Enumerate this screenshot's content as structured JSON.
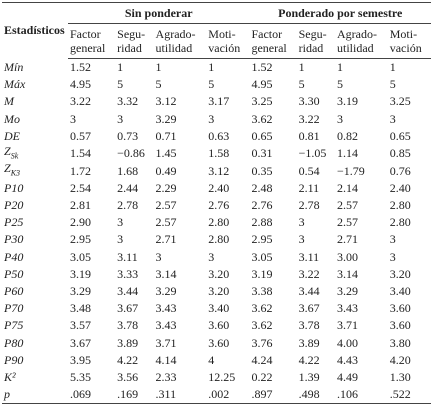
{
  "table": {
    "corner": "Estadísticos",
    "groups": [
      "Sin ponderar",
      "Ponderado por semestre"
    ],
    "columns": [
      [
        "Factor",
        "general"
      ],
      [
        "Segu-",
        "ridad"
      ],
      [
        "Agrado-",
        "utilidad"
      ],
      [
        "Moti-",
        "vación"
      ],
      [
        "Factor",
        "general"
      ],
      [
        "Segu-",
        "ridad"
      ],
      [
        "Agrado-",
        "utilidad"
      ],
      [
        "Moti-",
        "vación"
      ]
    ],
    "rows": [
      {
        "label": "Mín",
        "cells": [
          "1.52",
          "1",
          "1",
          "1",
          "1.52",
          "1",
          "1",
          "1"
        ]
      },
      {
        "label": "Máx",
        "cells": [
          "4.95",
          "5",
          "5",
          "5",
          "4.95",
          "5",
          "5",
          "5"
        ]
      },
      {
        "label": "M",
        "cells": [
          "3.22",
          "3.32",
          "3.12",
          "3.17",
          "3.25",
          "3.30",
          "3.19",
          "3.25"
        ]
      },
      {
        "label": "Mo",
        "cells": [
          "3",
          "3",
          "3.29",
          "3",
          "3.62",
          "3.22",
          "3",
          "3"
        ]
      },
      {
        "label": "DE",
        "cells": [
          "0.57",
          "0.73",
          "0.71",
          "0.63",
          "0.65",
          "0.81",
          "0.82",
          "0.65"
        ]
      },
      {
        "label": "Z",
        "sub": "Sk",
        "cells": [
          "1.54",
          "−0.86",
          "1.45",
          "1.58",
          "0.31",
          "−1.05",
          "1.14",
          "0.85"
        ]
      },
      {
        "label": "Z",
        "sub": "K3",
        "cells": [
          "1.72",
          "1.68",
          "0.49",
          "3.12",
          "0.35",
          "0.54",
          "−1.79",
          "0.76"
        ]
      },
      {
        "label": "P10",
        "cells": [
          "2.54",
          "2.44",
          "2.29",
          "2.40",
          "2.48",
          "2.11",
          "2.14",
          "2.40"
        ]
      },
      {
        "label": "P20",
        "cells": [
          "2.81",
          "2.78",
          "2.57",
          "2.76",
          "2.76",
          "2.78",
          "2.57",
          "2.80"
        ]
      },
      {
        "label": "P25",
        "cells": [
          "2.90",
          "3",
          "2.57",
          "2.80",
          "2.88",
          "3",
          "2.57",
          "2.80"
        ]
      },
      {
        "label": "P30",
        "cells": [
          "2.95",
          "3",
          "2.71",
          "2.80",
          "2.95",
          "3",
          "2.71",
          "3"
        ]
      },
      {
        "label": "P40",
        "cells": [
          "3.05",
          "3.11",
          "3",
          "3",
          "3.05",
          "3.11",
          "3.00",
          "3"
        ]
      },
      {
        "label": "P50",
        "cells": [
          "3.19",
          "3.33",
          "3.14",
          "3.20",
          "3.19",
          "3.22",
          "3.14",
          "3.20"
        ]
      },
      {
        "label": "P60",
        "cells": [
          "3.29",
          "3.44",
          "3.29",
          "3.20",
          "3.38",
          "3.44",
          "3.29",
          "3.40"
        ]
      },
      {
        "label": "P70",
        "cells": [
          "3.48",
          "3.67",
          "3.43",
          "3.40",
          "3.62",
          "3.67",
          "3.43",
          "3.60"
        ]
      },
      {
        "label": "P75",
        "cells": [
          "3.57",
          "3.78",
          "3.43",
          "3.60",
          "3.62",
          "3.78",
          "3.71",
          "3.60"
        ]
      },
      {
        "label": "P80",
        "cells": [
          "3.67",
          "3.89",
          "3.71",
          "3.60",
          "3.76",
          "3.89",
          "4.00",
          "3.80"
        ]
      },
      {
        "label": "P90",
        "cells": [
          "3.95",
          "4.22",
          "4.14",
          "4",
          "4.24",
          "4.22",
          "4.43",
          "4.20"
        ]
      },
      {
        "label": "K²",
        "cells": [
          "5.35",
          "3.56",
          "2.33",
          "12.25",
          "0.22",
          "1.39",
          "4.49",
          "1.30"
        ]
      },
      {
        "label": "p",
        "cells": [
          ".069",
          ".169",
          ".311",
          ".002",
          ".897",
          ".498",
          ".106",
          ".522"
        ]
      }
    ]
  }
}
